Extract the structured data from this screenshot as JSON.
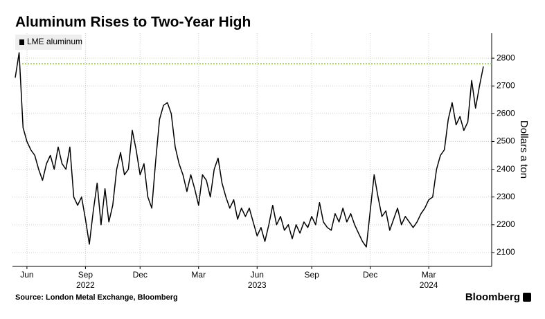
{
  "chart_data": {
    "type": "line",
    "title": "Aluminum Rises to Two-Year High",
    "y_axis_label": "Dollars a ton",
    "source": "Source: London Metal Exchange, Bloomberg",
    "brand": "Bloomberg",
    "categories": [
      null,
      null,
      null,
      "Jun",
      null,
      null,
      null,
      null,
      null,
      null,
      null,
      null,
      null,
      null,
      null,
      null,
      null,
      null,
      "Sep",
      null,
      null,
      null,
      null,
      null,
      null,
      null,
      null,
      null,
      null,
      null,
      null,
      null,
      "Dec",
      null,
      null,
      null,
      null,
      null,
      null,
      null,
      null,
      null,
      null,
      null,
      null,
      null,
      null,
      "Mar",
      null,
      null,
      null,
      null,
      null,
      null,
      null,
      null,
      null,
      null,
      null,
      null,
      null,
      null,
      "Jun",
      null,
      null,
      null,
      null,
      null,
      null,
      null,
      null,
      null,
      null,
      null,
      null,
      null,
      "Sep",
      null,
      null,
      null,
      null,
      null,
      null,
      null,
      null,
      null,
      null,
      null,
      null,
      null,
      null,
      "Dec",
      null,
      null,
      null,
      null,
      null,
      null,
      null,
      null,
      null,
      null,
      null,
      null,
      null,
      null,
      "Mar",
      null,
      null,
      null,
      null,
      null,
      null,
      null,
      null,
      null,
      null,
      null,
      null,
      null,
      null
    ],
    "category_years": [
      null,
      null,
      null,
      null,
      null,
      null,
      null,
      null,
      null,
      null,
      null,
      null,
      null,
      null,
      null,
      null,
      null,
      null,
      "2022",
      null,
      null,
      null,
      null,
      null,
      null,
      null,
      null,
      null,
      null,
      null,
      null,
      null,
      null,
      null,
      null,
      null,
      null,
      null,
      null,
      null,
      null,
      null,
      null,
      null,
      null,
      null,
      null,
      null,
      null,
      null,
      null,
      null,
      null,
      null,
      null,
      null,
      null,
      null,
      null,
      null,
      null,
      null,
      "2023",
      null,
      null,
      null,
      null,
      null,
      null,
      null,
      null,
      null,
      null,
      null,
      null,
      null,
      null,
      null,
      null,
      null,
      null,
      null,
      null,
      null,
      null,
      null,
      null,
      null,
      null,
      null,
      null,
      null,
      null,
      null,
      null,
      null,
      null,
      null,
      null,
      null,
      null,
      null,
      null,
      null,
      null,
      null,
      "2024",
      null,
      null,
      null,
      null,
      null,
      null,
      null,
      null,
      null,
      null,
      null,
      null,
      null,
      null
    ],
    "series": [
      {
        "name": "LME aluminum",
        "color": "#000000",
        "values": [
          2730,
          2820,
          2550,
          2500,
          2470,
          2450,
          2400,
          2360,
          2420,
          2450,
          2400,
          2480,
          2420,
          2400,
          2480,
          2300,
          2270,
          2300,
          2220,
          2130,
          2250,
          2350,
          2200,
          2330,
          2210,
          2270,
          2400,
          2460,
          2380,
          2400,
          2540,
          2470,
          2380,
          2420,
          2300,
          2260,
          2430,
          2580,
          2630,
          2640,
          2600,
          2480,
          2420,
          2380,
          2320,
          2380,
          2330,
          2270,
          2380,
          2360,
          2300,
          2400,
          2440,
          2350,
          2300,
          2260,
          2290,
          2220,
          2260,
          2230,
          2260,
          2210,
          2160,
          2190,
          2140,
          2200,
          2270,
          2200,
          2230,
          2180,
          2200,
          2150,
          2200,
          2170,
          2210,
          2190,
          2230,
          2200,
          2280,
          2210,
          2190,
          2180,
          2240,
          2210,
          2260,
          2210,
          2240,
          2200,
          2170,
          2140,
          2120,
          2250,
          2380,
          2300,
          2230,
          2250,
          2180,
          2220,
          2260,
          2200,
          2230,
          2210,
          2190,
          2210,
          2240,
          2260,
          2290,
          2300,
          2400,
          2450,
          2470,
          2580,
          2640,
          2560,
          2590,
          2540,
          2570,
          2720,
          2620,
          2700,
          2770
        ]
      }
    ],
    "reference_line": {
      "value": 2780,
      "color": "#8cc63f"
    },
    "ylim": [
      2050,
      2890
    ],
    "yticks": [
      2100,
      2200,
      2300,
      2400,
      2500,
      2600,
      2700,
      2800
    ],
    "grid": true,
    "legend": "top-left"
  }
}
